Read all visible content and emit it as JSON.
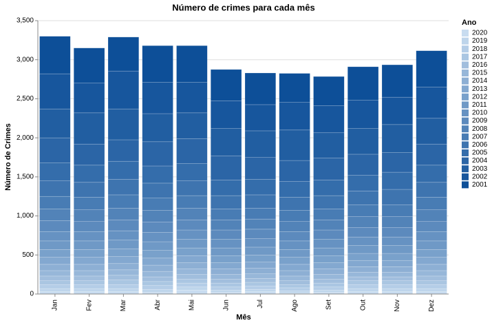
{
  "chart_data": {
    "type": "stacked_bar",
    "title": "Número de crimes para cada mês",
    "x_label": "Mês",
    "y_label": "Número de Crimes",
    "legend_title": "Ano",
    "categories": [
      "Jan",
      "Fev",
      "Mar",
      "Abr",
      "Mai",
      "Jun",
      "Jul",
      "Ago",
      "Set",
      "Out",
      "Nov",
      "Dez"
    ],
    "ylim": [
      0,
      3500
    ],
    "yticks": [
      0,
      500,
      {
        "value": 1000,
        "label": "1,000"
      },
      {
        "value": 1500,
        "label": "1,500"
      },
      {
        "value": 2000,
        "label": "2,000"
      },
      {
        "value": 2500,
        "label": "2,500"
      },
      {
        "value": 3000,
        "label": "3,000"
      },
      {
        "value": 3500,
        "label": "3,500"
      }
    ],
    "grid": true,
    "legend_position": "right",
    "series": [
      {
        "name": "2020",
        "color": "#c8dcf0",
        "values": [
          30,
          30,
          30,
          20,
          50,
          20,
          30,
          10,
          20,
          30,
          30,
          30
        ]
      },
      {
        "name": "2019",
        "color": "#bed5eb",
        "values": [
          40,
          40,
          40,
          40,
          40,
          30,
          30,
          30,
          30,
          40,
          40,
          40
        ]
      },
      {
        "name": "2018",
        "color": "#b4cde7",
        "values": [
          50,
          50,
          50,
          50,
          50,
          40,
          40,
          40,
          40,
          50,
          50,
          50
        ]
      },
      {
        "name": "2017",
        "color": "#aac6e2",
        "values": [
          50,
          50,
          60,
          50,
          50,
          50,
          50,
          40,
          50,
          50,
          50,
          50
        ]
      },
      {
        "name": "2016",
        "color": "#a1bedd",
        "values": [
          60,
          60,
          60,
          60,
          60,
          50,
          50,
          50,
          50,
          50,
          50,
          60
        ]
      },
      {
        "name": "2015",
        "color": "#97b7d9",
        "values": [
          70,
          70,
          70,
          70,
          70,
          60,
          60,
          60,
          60,
          60,
          60,
          70
        ]
      },
      {
        "name": "2014",
        "color": "#8dafd4",
        "values": [
          80,
          80,
          80,
          80,
          80,
          70,
          70,
          70,
          70,
          70,
          70,
          80
        ]
      },
      {
        "name": "2013",
        "color": "#83a8d0",
        "values": [
          90,
          90,
          90,
          90,
          90,
          80,
          80,
          80,
          80,
          80,
          80,
          90
        ]
      },
      {
        "name": "2012",
        "color": "#79a1cb",
        "values": [
          100,
          100,
          100,
          100,
          100,
          90,
          90,
          90,
          90,
          90,
          90,
          100
        ]
      },
      {
        "name": "2011",
        "color": "#6f99c6",
        "values": [
          110,
          110,
          110,
          110,
          110,
          100,
          100,
          100,
          100,
          100,
          100,
          110
        ]
      },
      {
        "name": "2010",
        "color": "#6692c2",
        "values": [
          120,
          120,
          120,
          120,
          120,
          110,
          110,
          110,
          110,
          110,
          110,
          120
        ]
      },
      {
        "name": "2009",
        "color": "#5c8abd",
        "values": [
          140,
          130,
          140,
          130,
          130,
          120,
          120,
          120,
          120,
          120,
          120,
          130
        ]
      },
      {
        "name": "2008",
        "color": "#5283b8",
        "values": [
          150,
          150,
          150,
          150,
          150,
          130,
          130,
          130,
          130,
          140,
          140,
          150
        ]
      },
      {
        "name": "2007",
        "color": "#487cb4",
        "values": [
          160,
          160,
          170,
          160,
          160,
          140,
          140,
          140,
          140,
          150,
          150,
          160
        ]
      },
      {
        "name": "2006",
        "color": "#3e74af",
        "values": [
          200,
          190,
          200,
          190,
          190,
          170,
          170,
          170,
          170,
          180,
          200,
          190
        ]
      },
      {
        "name": "2005",
        "color": "#346dab",
        "values": [
          230,
          220,
          230,
          220,
          220,
          200,
          200,
          200,
          200,
          200,
          220,
          220
        ]
      },
      {
        "name": "2004",
        "color": "#2b65a6",
        "values": [
          320,
          270,
          275,
          310,
          320,
          310,
          280,
          270,
          280,
          270,
          250,
          270
        ]
      },
      {
        "name": "2003",
        "color": "#215ea1",
        "values": [
          370,
          400,
          395,
          360,
          330,
          350,
          340,
          390,
          325,
          330,
          360,
          330
        ]
      },
      {
        "name": "2002",
        "color": "#17569d",
        "values": [
          450,
          380,
          485,
          400,
          390,
          355,
          335,
          355,
          345,
          360,
          350,
          400
        ]
      },
      {
        "name": "2001",
        "color": "#0d4f98",
        "values": [
          480,
          450,
          435,
          470,
          470,
          400,
          405,
          370,
          375,
          430,
          415,
          465
        ]
      }
    ]
  }
}
